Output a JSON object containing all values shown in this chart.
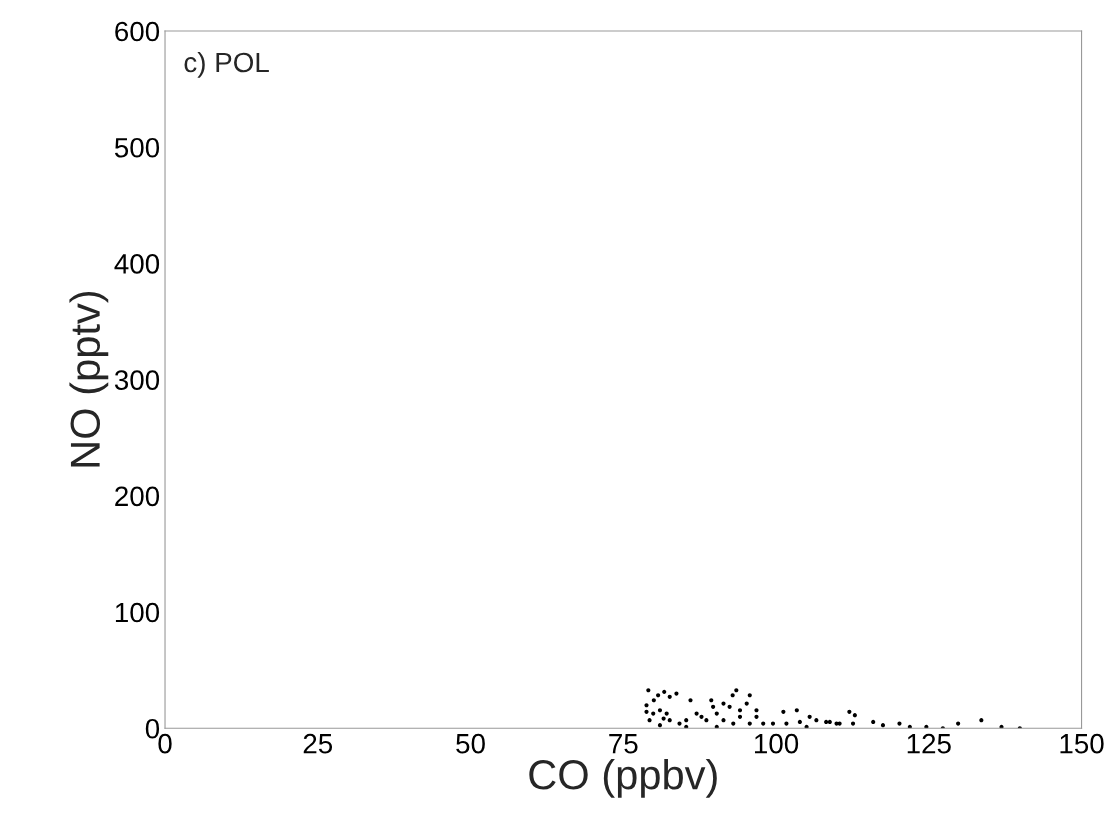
{
  "chart_data": {
    "type": "scatter",
    "xlabel": "CO (ppbv)",
    "ylabel": "NO (pptv)",
    "annotations": [
      "c) POL"
    ],
    "xlim": [
      0,
      150
    ],
    "xticks": [
      0,
      25,
      50,
      75,
      100,
      125,
      150
    ],
    "ylim": [
      0,
      600
    ],
    "yticks": [
      0,
      100,
      200,
      300,
      400,
      500,
      600
    ],
    "grid": false,
    "marker": "circle",
    "series": [
      {
        "color": "#000000",
        "x": [
          79.1,
          80.7,
          81.7,
          82.6,
          83.7,
          78.8,
          80.0,
          86.0,
          89.4,
          93.5,
          92.9,
          95.7,
          78.8,
          79.9,
          81.0,
          82.1,
          81.6,
          79.3,
          82.6,
          84.2,
          85.3,
          87.0,
          87.8,
          88.6,
          89.7,
          90.3,
          91.4,
          92.4,
          94.1,
          95.2,
          91.4,
          93.0,
          94.1,
          96.8,
          96.8,
          95.7,
          97.9,
          99.5,
          101.2,
          103.4,
          101.7,
          103.9,
          105.5,
          106.6,
          108.2,
          109.9,
          85.3,
          90.3,
          105.0,
          81.0,
          108.8,
          110.4,
          112.0,
          112.9,
          112.6,
          115.9,
          117.5,
          120.2,
          121.9,
          124.6,
          127.3,
          129.8,
          133.6,
          136.9,
          139.9
        ],
        "values": [
          32.7,
          28.4,
          31.3,
          27.0,
          29.8,
          19.8,
          24.1,
          24.1,
          24.1,
          32.7,
          28.4,
          28.4,
          14.1,
          12.6,
          15.5,
          12.6,
          8.3,
          6.9,
          6.9,
          4.0,
          6.9,
          12.6,
          9.8,
          6.9,
          18.4,
          12.6,
          21.2,
          18.4,
          15.5,
          21.2,
          6.9,
          4.0,
          9.8,
          15.5,
          9.8,
          4.0,
          4.0,
          4.0,
          14.1,
          15.5,
          4.0,
          5.4,
          9.8,
          6.9,
          5.4,
          4.0,
          1.1,
          1.1,
          1.1,
          2.6,
          5.4,
          4.0,
          14.1,
          11.2,
          4.0,
          5.4,
          2.6,
          4.0,
          1.1,
          1.1,
          0,
          4.0,
          6.9,
          1.1,
          0
        ]
      }
    ]
  }
}
